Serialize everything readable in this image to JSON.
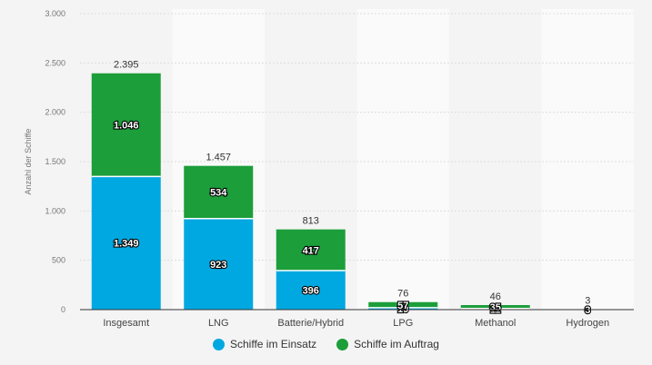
{
  "chart_data": {
    "type": "bar",
    "stacked": true,
    "title": "",
    "xlabel": "",
    "ylabel": "Anzahl der Schiffe",
    "ylim": [
      0,
      3000
    ],
    "yticks": [
      0,
      500,
      1000,
      1500,
      2000,
      2500,
      3000
    ],
    "ytick_labels": [
      "0",
      "500",
      "1.000",
      "1.500",
      "2.000",
      "2.500",
      "3.000"
    ],
    "grid": true,
    "categories": [
      "Insgesamt",
      "LNG",
      "Batterie/Hybrid",
      "LPG",
      "Methanol",
      "Hydrogen"
    ],
    "series": [
      {
        "name": "Schiffe im Einsatz",
        "color": "#00a8e1",
        "values": [
          1349,
          923,
          396,
          19,
          11,
          0
        ],
        "labels": [
          "1.349",
          "923",
          "396",
          "19",
          "11",
          "0"
        ]
      },
      {
        "name": "Schiffe im Auftrag",
        "color": "#1c9e3a",
        "values": [
          1046,
          534,
          417,
          57,
          35,
          3
        ],
        "labels": [
          "1.046",
          "534",
          "417",
          "57",
          "35",
          "3"
        ]
      }
    ],
    "totals": [
      2395,
      1457,
      813,
      76,
      46,
      3
    ],
    "total_labels": [
      "2.395",
      "1.457",
      "813",
      "76",
      "46",
      "3"
    ],
    "legend_position": "bottom"
  }
}
